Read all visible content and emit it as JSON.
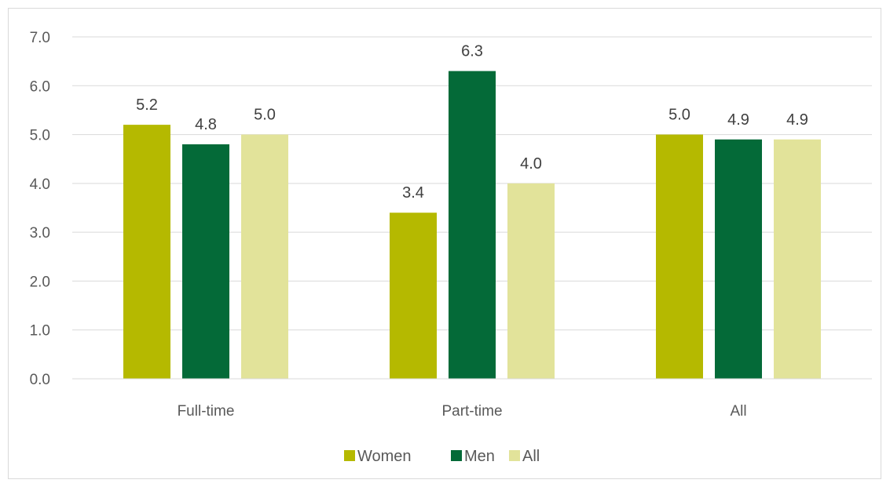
{
  "chart_data": {
    "type": "bar",
    "categories": [
      "Full-time",
      "Part-time",
      "All"
    ],
    "series": [
      {
        "name": "Women",
        "values": [
          5.2,
          3.4,
          5.0
        ],
        "labels": [
          "5.2",
          "3.4",
          "5.0"
        ],
        "color": "#b5b900"
      },
      {
        "name": "Men",
        "values": [
          4.8,
          6.3,
          4.9
        ],
        "labels": [
          "4.8",
          "6.3",
          "4.9"
        ],
        "color": "#046a38"
      },
      {
        "name": "All",
        "values": [
          5.0,
          4.0,
          4.9
        ],
        "labels": [
          "5.0",
          "4.0",
          "4.9"
        ],
        "color": "#e2e39a"
      }
    ],
    "y_ticks": [
      "0.0",
      "1.0",
      "2.0",
      "3.0",
      "4.0",
      "5.0",
      "6.0",
      "7.0"
    ],
    "ylim": [
      0,
      7
    ],
    "grid": true,
    "legend_position": "bottom",
    "gridline_color": "#d9d9d9"
  }
}
